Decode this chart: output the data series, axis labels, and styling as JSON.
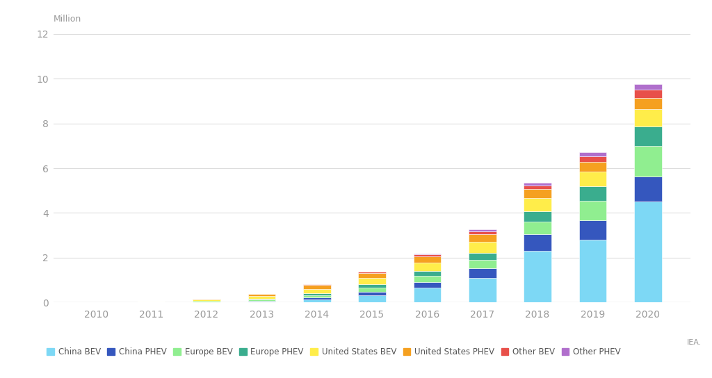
{
  "years": [
    2010,
    2011,
    2012,
    2013,
    2014,
    2015,
    2016,
    2017,
    2018,
    2019,
    2020
  ],
  "series": {
    "China BEV": [
      0.001,
      0.006,
      0.016,
      0.045,
      0.128,
      0.312,
      0.652,
      1.1,
      2.3,
      2.8,
      4.5
    ],
    "China PHEV": [
      0.0,
      0.001,
      0.003,
      0.016,
      0.083,
      0.152,
      0.257,
      0.418,
      0.757,
      0.87,
      1.13
    ],
    "Europe BEV": [
      0.001,
      0.01,
      0.035,
      0.065,
      0.11,
      0.195,
      0.268,
      0.39,
      0.555,
      0.865,
      1.365
    ],
    "Europe PHEV": [
      0.0,
      0.001,
      0.012,
      0.035,
      0.095,
      0.145,
      0.218,
      0.305,
      0.45,
      0.65,
      0.87
    ],
    "United States BEV": [
      0.001,
      0.012,
      0.052,
      0.11,
      0.195,
      0.285,
      0.385,
      0.49,
      0.59,
      0.65,
      0.79
    ],
    "United States PHEV": [
      0.0,
      0.012,
      0.05,
      0.098,
      0.17,
      0.22,
      0.28,
      0.355,
      0.42,
      0.45,
      0.47
    ],
    "Other BEV": [
      0.0,
      0.001,
      0.004,
      0.012,
      0.025,
      0.05,
      0.08,
      0.11,
      0.16,
      0.24,
      0.39
    ],
    "Other PHEV": [
      0.0,
      0.0,
      0.002,
      0.006,
      0.012,
      0.025,
      0.048,
      0.085,
      0.13,
      0.185,
      0.26
    ]
  },
  "colors": {
    "China BEV": "#7DD8F5",
    "China PHEV": "#3557BE",
    "Europe BEV": "#90EE90",
    "Europe PHEV": "#3AAD8E",
    "United States BEV": "#FFED4A",
    "United States PHEV": "#F5A020",
    "Other BEV": "#E8504A",
    "Other PHEV": "#B06FCC"
  },
  "ylim": [
    0,
    12
  ],
  "yticks": [
    0,
    2,
    4,
    6,
    8,
    10,
    12
  ],
  "ylabel": "Million",
  "background_color": "#FFFFFF",
  "grid_color": "#DDDDDD",
  "tick_color": "#999999",
  "source_text": "IEA.",
  "bar_width": 0.5
}
